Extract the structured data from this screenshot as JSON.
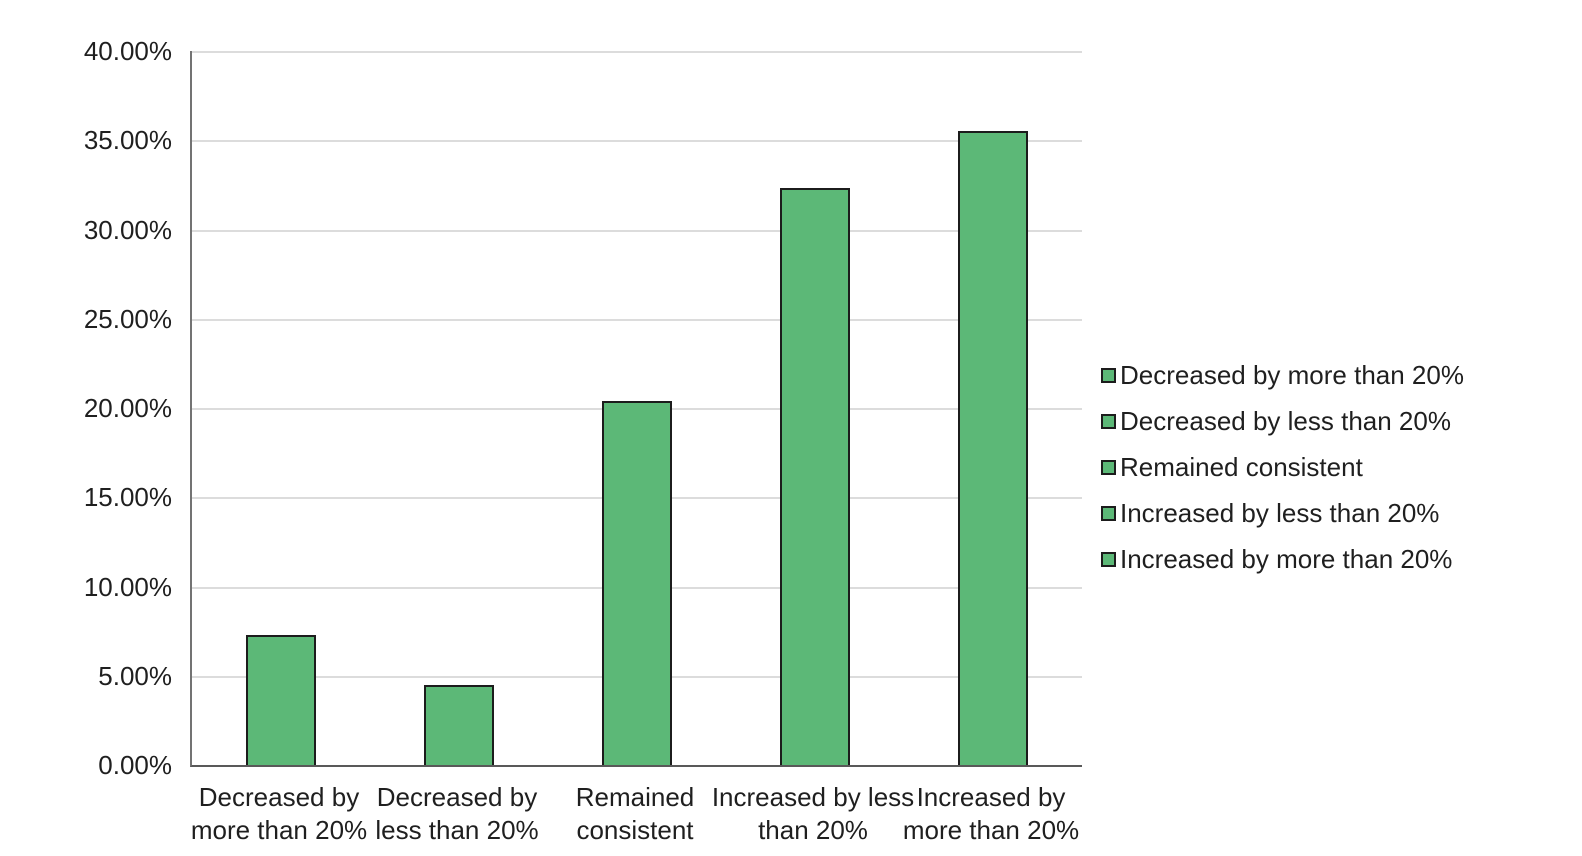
{
  "colors": {
    "bar_fill": "#5cb877",
    "bar_border": "#1c1c1c",
    "gridline": "#dcdcdc",
    "y_axis_line": "#737373",
    "x_axis_line": "#595959",
    "text": "#1f1f1f",
    "background": "#ffffff"
  },
  "chart_data": {
    "type": "bar",
    "title": "",
    "xlabel": "",
    "ylabel": "",
    "categories": [
      "Decreased by more than 20%",
      "Decreased by less than 20%",
      "Remained consistent",
      "Increased by less than 20%",
      "Increased by more than 20%"
    ],
    "category_label_lines": [
      [
        "Decreased by",
        "more than 20%"
      ],
      [
        "Decreased by",
        "less than 20%"
      ],
      [
        "Remained",
        "consistent"
      ],
      [
        "Increased by less",
        "than 20%"
      ],
      [
        "Increased by",
        "more than 20%"
      ]
    ],
    "values": [
      7.3,
      4.5,
      20.4,
      32.3,
      35.5
    ],
    "ylim": [
      0,
      40
    ],
    "ytick_step": 5,
    "ytick_labels": [
      "0.00%",
      "5.00%",
      "10.00%",
      "15.00%",
      "20.00%",
      "25.00%",
      "30.00%",
      "35.00%",
      "40.00%"
    ],
    "grid": true,
    "legend": {
      "position": "right",
      "entries": [
        "Decreased by more than 20%",
        "Decreased by less than 20%",
        "Remained consistent",
        "Increased by less than 20%",
        "Increased by more than 20%"
      ]
    }
  }
}
